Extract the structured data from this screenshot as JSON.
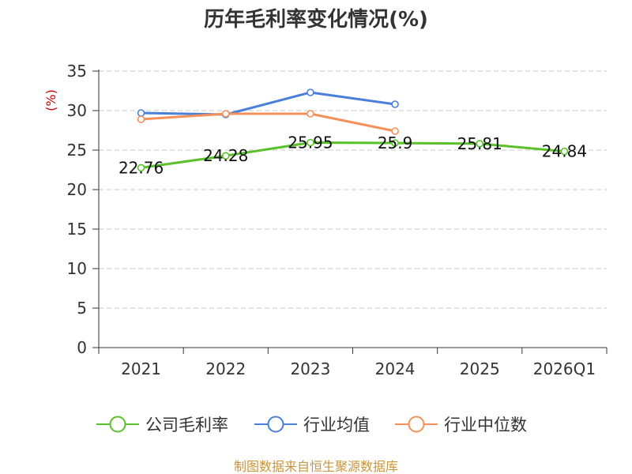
{
  "chart_data": {
    "type": "line",
    "title": "历年毛利率变化情况(%)",
    "ylabel": "(%)",
    "xlabel": "",
    "categories": [
      "2021",
      "2022",
      "2023",
      "2024",
      "2025",
      "2026Q1"
    ],
    "ylim": [
      0,
      35
    ],
    "yticks": [
      0,
      5,
      10,
      15,
      20,
      25,
      30,
      35
    ],
    "grid": true,
    "legend_position": "bottom",
    "series": [
      {
        "name": "公司毛利率",
        "color": "#5ac12a",
        "values": [
          22.76,
          24.28,
          25.95,
          25.9,
          25.81,
          24.84
        ],
        "labels": [
          "22.76",
          "24.28",
          "25.95",
          "25.9",
          "25.81",
          "24.84"
        ]
      },
      {
        "name": "行业均值",
        "color": "#4a80d9",
        "values": [
          29.7,
          29.5,
          32.3,
          30.8,
          null,
          null
        ]
      },
      {
        "name": "行业中位数",
        "color": "#f5905a",
        "values": [
          28.9,
          29.6,
          29.6,
          27.4,
          null,
          null
        ]
      }
    ],
    "source": "制图数据来自恒生聚源数据库"
  }
}
